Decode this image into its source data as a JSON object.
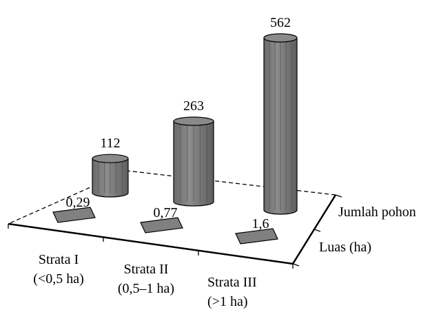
{
  "chart_data": {
    "type": "bar",
    "three_d": true,
    "categories": [
      [
        "Strata I",
        "(<0,5 ha)"
      ],
      [
        "Strata II",
        "(0,5–1 ha)"
      ],
      [
        "Strata III",
        "(>1 ha)"
      ]
    ],
    "series": [
      {
        "name": "Jumlah pohon",
        "values": [
          112,
          263,
          562
        ],
        "value_labels": [
          "112",
          "263",
          "562"
        ],
        "shape": "cylinder",
        "color": "#808080"
      },
      {
        "name": "Luas (ha)",
        "values": [
          0.29,
          0.77,
          1.6
        ],
        "value_labels": [
          "0,29",
          "0,77",
          "1,6"
        ],
        "shape": "flat",
        "color": "#808080"
      }
    ],
    "title": "",
    "xlabel": "",
    "ylabel": "",
    "grid": false,
    "legend": "none"
  }
}
